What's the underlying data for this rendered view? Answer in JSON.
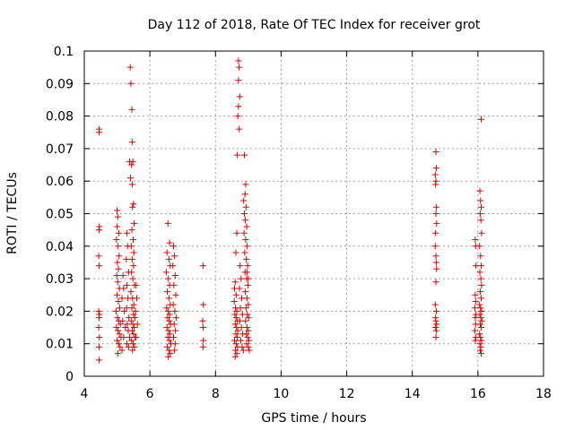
{
  "chart_data": {
    "type": "scatter",
    "title": "Day 112 of 2018, Rate Of TEC Index for receiver grot",
    "xlabel": "GPS time / hours",
    "ylabel": "ROTI / TECUs",
    "xlim": [
      4,
      18
    ],
    "ylim": [
      0,
      0.1
    ],
    "grid": true,
    "marker": "+",
    "marker_color": "#e00000",
    "x_ticks": [
      "4",
      "6",
      "8",
      "10",
      "12",
      "14",
      "16",
      "18"
    ],
    "y_ticks": [
      "0",
      "0.01",
      "0.02",
      "0.03",
      "0.04",
      "0.05",
      "0.06",
      "0.07",
      "0.08",
      "0.09",
      "0.1"
    ],
    "series": [
      {
        "name": "grot",
        "points": [
          [
            4.45,
            0.076
          ],
          [
            4.45,
            0.075
          ],
          [
            4.46,
            0.046
          ],
          [
            4.45,
            0.045
          ],
          [
            4.44,
            0.037
          ],
          [
            4.45,
            0.034
          ],
          [
            4.44,
            0.02
          ],
          [
            4.46,
            0.019
          ],
          [
            4.45,
            0.018
          ],
          [
            4.44,
            0.015
          ],
          [
            4.46,
            0.012
          ],
          [
            4.45,
            0.009
          ],
          [
            4.45,
            0.005
          ],
          [
            5.0,
            0.051
          ],
          [
            5.02,
            0.049
          ],
          [
            5.0,
            0.046
          ],
          [
            5.05,
            0.044
          ],
          [
            4.98,
            0.042
          ],
          [
            5.03,
            0.04
          ],
          [
            5.06,
            0.037
          ],
          [
            5.01,
            0.035
          ],
          [
            5.04,
            0.033
          ],
          [
            4.99,
            0.031
          ],
          [
            5.02,
            0.029
          ],
          [
            5.07,
            0.027
          ],
          [
            5.0,
            0.025
          ],
          [
            5.04,
            0.023
          ],
          [
            5.08,
            0.021
          ],
          [
            4.97,
            0.02
          ],
          [
            5.01,
            0.018
          ],
          [
            5.05,
            0.017
          ],
          [
            5.1,
            0.016
          ],
          [
            4.98,
            0.015
          ],
          [
            5.03,
            0.014
          ],
          [
            5.07,
            0.013
          ],
          [
            5.12,
            0.012
          ],
          [
            5.0,
            0.011
          ],
          [
            5.05,
            0.01
          ],
          [
            5.09,
            0.009
          ],
          [
            5.15,
            0.008
          ],
          [
            5.02,
            0.007
          ],
          [
            5.18,
            0.031
          ],
          [
            5.2,
            0.027
          ],
          [
            5.15,
            0.024
          ],
          [
            5.22,
            0.02
          ],
          [
            5.17,
            0.017
          ],
          [
            5.25,
            0.015
          ],
          [
            5.2,
            0.012
          ],
          [
            5.3,
            0.044
          ],
          [
            5.32,
            0.04
          ],
          [
            5.28,
            0.036
          ],
          [
            5.35,
            0.032
          ],
          [
            5.3,
            0.028
          ],
          [
            5.33,
            0.024
          ],
          [
            5.29,
            0.021
          ],
          [
            5.36,
            0.018
          ],
          [
            5.31,
            0.016
          ],
          [
            5.34,
            0.014
          ],
          [
            5.38,
            0.012
          ],
          [
            5.3,
            0.01
          ],
          [
            5.35,
            0.009
          ],
          [
            5.4,
            0.095
          ],
          [
            5.42,
            0.09
          ],
          [
            5.45,
            0.082
          ],
          [
            5.46,
            0.072
          ],
          [
            5.38,
            0.066
          ],
          [
            5.44,
            0.065
          ],
          [
            5.48,
            0.066
          ],
          [
            5.41,
            0.061
          ],
          [
            5.46,
            0.059
          ],
          [
            5.5,
            0.053
          ],
          [
            5.47,
            0.052
          ],
          [
            5.52,
            0.047
          ],
          [
            5.45,
            0.045
          ],
          [
            5.49,
            0.042
          ],
          [
            5.43,
            0.04
          ],
          [
            5.51,
            0.038
          ],
          [
            5.46,
            0.036
          ],
          [
            5.5,
            0.034
          ],
          [
            5.44,
            0.032
          ],
          [
            5.48,
            0.03
          ],
          [
            5.53,
            0.028
          ],
          [
            5.42,
            0.026
          ],
          [
            5.47,
            0.024
          ],
          [
            5.51,
            0.022
          ],
          [
            5.45,
            0.021
          ],
          [
            5.5,
            0.019
          ],
          [
            5.54,
            0.018
          ],
          [
            5.43,
            0.017
          ],
          [
            5.48,
            0.016
          ],
          [
            5.52,
            0.015
          ],
          [
            5.46,
            0.014
          ],
          [
            5.5,
            0.013
          ],
          [
            5.55,
            0.012
          ],
          [
            5.44,
            0.011
          ],
          [
            5.49,
            0.01
          ],
          [
            5.53,
            0.009
          ],
          [
            5.47,
            0.008
          ],
          [
            5.58,
            0.028
          ],
          [
            5.6,
            0.024
          ],
          [
            5.56,
            0.02
          ],
          [
            5.62,
            0.016
          ],
          [
            5.58,
            0.012
          ],
          [
            6.55,
            0.047
          ],
          [
            6.6,
            0.041
          ],
          [
            6.52,
            0.038
          ],
          [
            6.58,
            0.036
          ],
          [
            6.62,
            0.034
          ],
          [
            6.5,
            0.032
          ],
          [
            6.56,
            0.03
          ],
          [
            6.6,
            0.028
          ],
          [
            6.53,
            0.026
          ],
          [
            6.58,
            0.024
          ],
          [
            6.62,
            0.022
          ],
          [
            6.51,
            0.021
          ],
          [
            6.56,
            0.02
          ],
          [
            6.6,
            0.019
          ],
          [
            6.54,
            0.018
          ],
          [
            6.59,
            0.017
          ],
          [
            6.63,
            0.016
          ],
          [
            6.52,
            0.015
          ],
          [
            6.57,
            0.014
          ],
          [
            6.61,
            0.013
          ],
          [
            6.55,
            0.012
          ],
          [
            6.6,
            0.011
          ],
          [
            6.64,
            0.01
          ],
          [
            6.53,
            0.009
          ],
          [
            6.58,
            0.008
          ],
          [
            6.62,
            0.007
          ],
          [
            6.56,
            0.006
          ],
          [
            6.72,
            0.04
          ],
          [
            6.75,
            0.037
          ],
          [
            6.7,
            0.034
          ],
          [
            6.77,
            0.031
          ],
          [
            6.73,
            0.028
          ],
          [
            6.79,
            0.025
          ],
          [
            6.71,
            0.022
          ],
          [
            6.76,
            0.02
          ],
          [
            6.8,
            0.018
          ],
          [
            6.74,
            0.016
          ],
          [
            6.78,
            0.014
          ],
          [
            6.72,
            0.012
          ],
          [
            6.77,
            0.01
          ],
          [
            6.75,
            0.008
          ],
          [
            7.62,
            0.034
          ],
          [
            7.63,
            0.022
          ],
          [
            7.61,
            0.017
          ],
          [
            7.62,
            0.015
          ],
          [
            7.63,
            0.011
          ],
          [
            7.62,
            0.009
          ],
          [
            8.7,
            0.097
          ],
          [
            8.72,
            0.095
          ],
          [
            8.7,
            0.091
          ],
          [
            8.74,
            0.086
          ],
          [
            8.7,
            0.083
          ],
          [
            8.68,
            0.08
          ],
          [
            8.72,
            0.076
          ],
          [
            8.66,
            0.068
          ],
          [
            8.65,
            0.044
          ],
          [
            8.62,
            0.038
          ],
          [
            8.6,
            0.029
          ],
          [
            8.58,
            0.027
          ],
          [
            8.63,
            0.025
          ],
          [
            8.57,
            0.023
          ],
          [
            8.61,
            0.021
          ],
          [
            8.65,
            0.02
          ],
          [
            8.59,
            0.019
          ],
          [
            8.63,
            0.018
          ],
          [
            8.67,
            0.017
          ],
          [
            8.6,
            0.016
          ],
          [
            8.64,
            0.015
          ],
          [
            8.68,
            0.014
          ],
          [
            8.62,
            0.013
          ],
          [
            8.66,
            0.012
          ],
          [
            8.58,
            0.011
          ],
          [
            8.63,
            0.01
          ],
          [
            8.67,
            0.009
          ],
          [
            8.61,
            0.008
          ],
          [
            8.65,
            0.007
          ],
          [
            8.6,
            0.006
          ],
          [
            8.75,
            0.034
          ],
          [
            8.78,
            0.03
          ],
          [
            8.73,
            0.027
          ],
          [
            8.8,
            0.024
          ],
          [
            8.76,
            0.021
          ],
          [
            8.82,
            0.019
          ],
          [
            8.74,
            0.017
          ],
          [
            8.79,
            0.015
          ],
          [
            8.83,
            0.013
          ],
          [
            8.77,
            0.011
          ],
          [
            8.81,
            0.009
          ],
          [
            8.85,
            0.008
          ],
          [
            8.88,
            0.068
          ],
          [
            8.92,
            0.059
          ],
          [
            8.9,
            0.056
          ],
          [
            8.86,
            0.054
          ],
          [
            8.93,
            0.052
          ],
          [
            8.88,
            0.05
          ],
          [
            8.91,
            0.048
          ],
          [
            8.95,
            0.046
          ],
          [
            8.87,
            0.044
          ],
          [
            8.92,
            0.042
          ],
          [
            8.96,
            0.04
          ],
          [
            8.89,
            0.038
          ],
          [
            8.94,
            0.036
          ],
          [
            8.98,
            0.034
          ],
          [
            8.9,
            0.032
          ],
          [
            8.95,
            0.03
          ],
          [
            8.99,
            0.028
          ],
          [
            8.91,
            0.026
          ],
          [
            8.96,
            0.024
          ],
          [
            9.0,
            0.022
          ],
          [
            8.93,
            0.021
          ],
          [
            8.97,
            0.019
          ],
          [
            9.01,
            0.018
          ],
          [
            8.92,
            0.017
          ],
          [
            8.96,
            0.015
          ],
          [
            9.0,
            0.014
          ],
          [
            8.94,
            0.013
          ],
          [
            8.98,
            0.012
          ],
          [
            9.02,
            0.011
          ],
          [
            8.95,
            0.01
          ],
          [
            9.0,
            0.009
          ],
          [
            9.03,
            0.008
          ],
          [
            8.96,
            0.032
          ],
          [
            9.0,
            0.03
          ],
          [
            14.72,
            0.069
          ],
          [
            14.73,
            0.064
          ],
          [
            14.7,
            0.062
          ],
          [
            14.72,
            0.06
          ],
          [
            14.71,
            0.059
          ],
          [
            14.73,
            0.052
          ],
          [
            14.72,
            0.05
          ],
          [
            14.74,
            0.047
          ],
          [
            14.71,
            0.044
          ],
          [
            14.7,
            0.04
          ],
          [
            14.72,
            0.037
          ],
          [
            14.73,
            0.035
          ],
          [
            14.74,
            0.033
          ],
          [
            14.72,
            0.029
          ],
          [
            14.7,
            0.022
          ],
          [
            14.73,
            0.02
          ],
          [
            14.71,
            0.018
          ],
          [
            14.72,
            0.017
          ],
          [
            14.74,
            0.016
          ],
          [
            14.71,
            0.015
          ],
          [
            14.73,
            0.014
          ],
          [
            14.72,
            0.012
          ],
          [
            15.92,
            0.042
          ],
          [
            15.93,
            0.04
          ],
          [
            15.94,
            0.034
          ],
          [
            15.92,
            0.025
          ],
          [
            15.93,
            0.023
          ],
          [
            15.91,
            0.021
          ],
          [
            15.94,
            0.019
          ],
          [
            15.92,
            0.018
          ],
          [
            15.93,
            0.016
          ],
          [
            15.91,
            0.014
          ],
          [
            15.94,
            0.012
          ],
          [
            15.92,
            0.011
          ],
          [
            16.1,
            0.079
          ],
          [
            16.06,
            0.057
          ],
          [
            16.08,
            0.054
          ],
          [
            16.1,
            0.052
          ],
          [
            16.07,
            0.05
          ],
          [
            16.09,
            0.048
          ],
          [
            16.11,
            0.044
          ],
          [
            16.05,
            0.04
          ],
          [
            16.08,
            0.037
          ],
          [
            16.1,
            0.034
          ],
          [
            16.06,
            0.032
          ],
          [
            16.09,
            0.03
          ],
          [
            16.11,
            0.028
          ],
          [
            16.07,
            0.026
          ],
          [
            16.1,
            0.024
          ],
          [
            16.05,
            0.022
          ],
          [
            16.08,
            0.021
          ],
          [
            16.11,
            0.02
          ],
          [
            16.06,
            0.019
          ],
          [
            16.09,
            0.018
          ],
          [
            16.12,
            0.017
          ],
          [
            16.07,
            0.016
          ],
          [
            16.1,
            0.015
          ],
          [
            16.05,
            0.013
          ],
          [
            16.08,
            0.012
          ],
          [
            16.11,
            0.011
          ],
          [
            16.06,
            0.01
          ],
          [
            16.09,
            0.009
          ],
          [
            16.07,
            0.008
          ],
          [
            16.1,
            0.007
          ]
        ]
      }
    ]
  }
}
